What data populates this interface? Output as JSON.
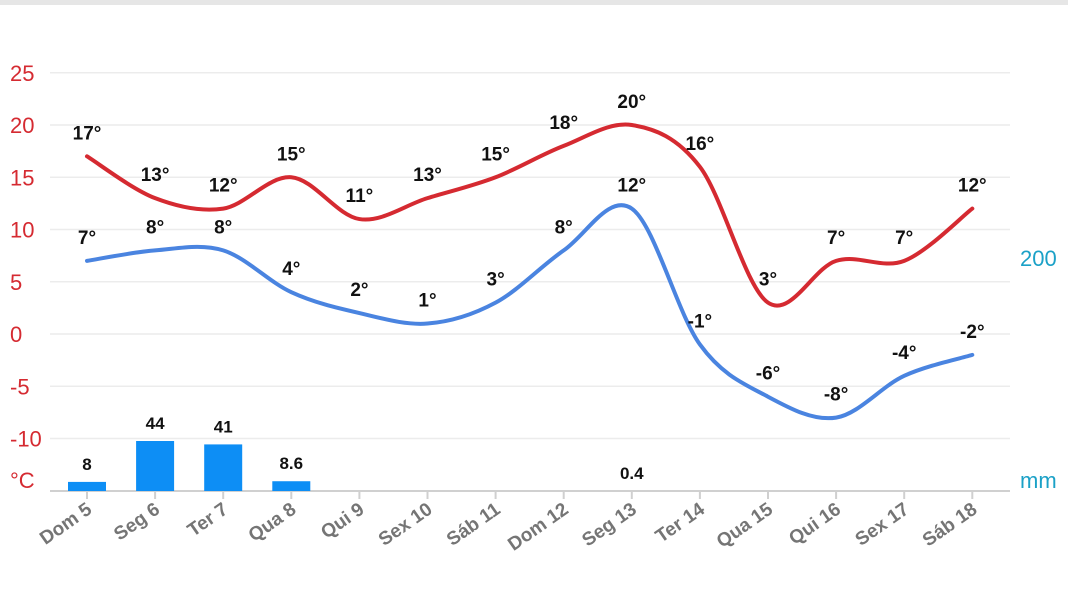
{
  "chart_data": {
    "type": "line",
    "categories": [
      "Dom 5",
      "Seg 6",
      "Ter 7",
      "Qua 8",
      "Qui 9",
      "Sex 10",
      "Sáb 11",
      "Dom 12",
      "Seg 13",
      "Ter 14",
      "Qua 15",
      "Qui 16",
      "Sex 17",
      "Sáb 18"
    ],
    "series": [
      {
        "values": [
          17,
          13,
          12,
          15,
          11,
          13,
          15,
          18,
          20,
          16,
          3,
          7,
          7,
          12
        ],
        "labels": [
          "17°",
          "13°",
          "12°",
          "15°",
          "11°",
          "13°",
          "15°",
          "18°",
          "20°",
          "16°",
          "3°",
          "7°",
          "7°",
          "12°"
        ],
        "color": "#d52a31"
      },
      {
        "values": [
          7,
          8,
          8,
          4,
          2,
          1,
          3,
          8,
          12,
          -1,
          -6,
          -8,
          -4,
          -2
        ],
        "labels": [
          "7°",
          "8°",
          "8°",
          "4°",
          "2°",
          "1°",
          "3°",
          "8°",
          "12°",
          "-1°",
          "-6°",
          "-8°",
          "-4°",
          "-2°"
        ],
        "color": "#4a84e0"
      }
    ],
    "precipitation": {
      "values": [
        8,
        44,
        41,
        8.6,
        0,
        0,
        0,
        0,
        0.4,
        0,
        0,
        0,
        0,
        0
      ],
      "labels": [
        "8",
        "44",
        "41",
        "8.6",
        "",
        "",
        "",
        "",
        "0.4",
        "",
        "",
        "",
        "",
        ""
      ],
      "color": "#0d8ef5"
    },
    "y_left": {
      "ticks": [
        "25",
        "20",
        "15",
        "10",
        "5",
        "0",
        "-5",
        "-10"
      ],
      "unit": "°C",
      "ylim": [
        -10,
        25
      ],
      "color": "#d52a31"
    },
    "y_right": {
      "tick": "200",
      "unit": "mm",
      "color": "#1ba1c7"
    },
    "grid": true
  }
}
